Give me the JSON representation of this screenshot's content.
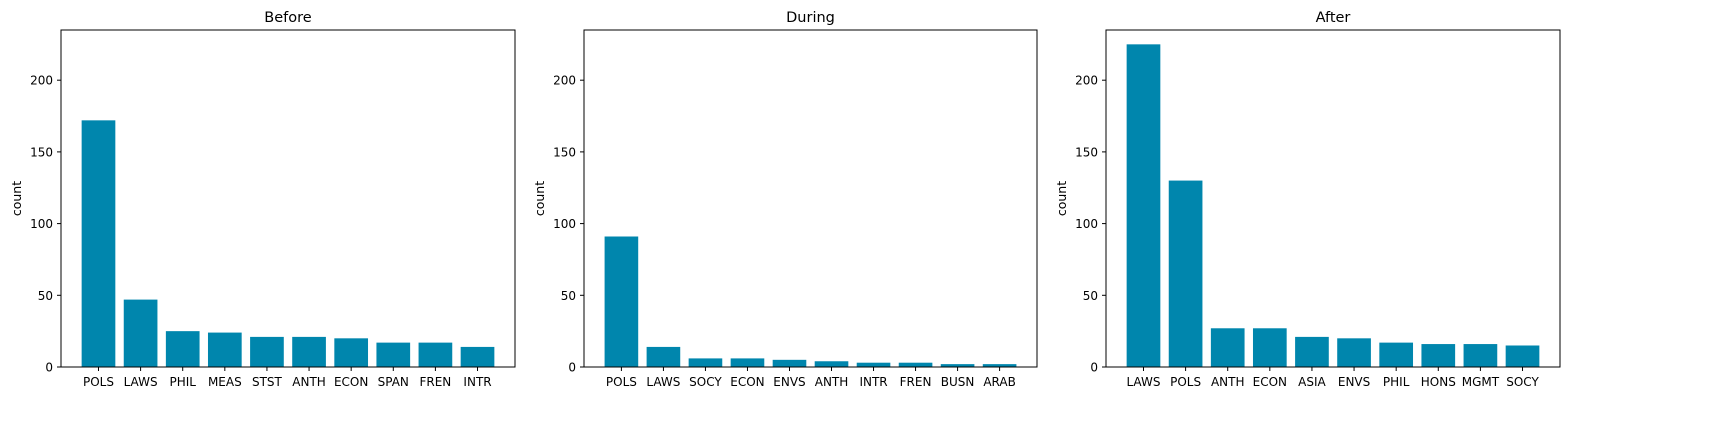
{
  "chart_data": [
    {
      "type": "bar",
      "title": "Before",
      "xlabel": "",
      "ylabel": "count",
      "ylim": [
        0,
        235
      ],
      "yticks": [
        0,
        50,
        100,
        150,
        200
      ],
      "categories": [
        "POLS",
        "LAWS",
        "PHIL",
        "MEAS",
        "STST",
        "ANTH",
        "ECON",
        "SPAN",
        "FREN",
        "INTR"
      ],
      "values": [
        172,
        47,
        25,
        24,
        21,
        21,
        20,
        17,
        17,
        14
      ],
      "color": "#0086ad"
    },
    {
      "type": "bar",
      "title": "During",
      "xlabel": "",
      "ylabel": "count",
      "ylim": [
        0,
        235
      ],
      "yticks": [
        0,
        50,
        100,
        150,
        200
      ],
      "categories": [
        "POLS",
        "LAWS",
        "SOCY",
        "ECON",
        "ENVS",
        "ANTH",
        "INTR",
        "FREN",
        "BUSN",
        "ARAB"
      ],
      "values": [
        91,
        14,
        6,
        6,
        5,
        4,
        3,
        3,
        2,
        2
      ],
      "color": "#0086ad"
    },
    {
      "type": "bar",
      "title": "After",
      "xlabel": "",
      "ylabel": "count",
      "ylim": [
        0,
        235
      ],
      "yticks": [
        0,
        50,
        100,
        150,
        200
      ],
      "categories": [
        "LAWS",
        "POLS",
        "ANTH",
        "ECON",
        "ASIA",
        "ENVS",
        "PHIL",
        "HONS",
        "MGMT",
        "SOCY"
      ],
      "values": [
        225,
        130,
        27,
        27,
        21,
        20,
        17,
        16,
        16,
        15
      ],
      "color": "#0086ad"
    }
  ]
}
